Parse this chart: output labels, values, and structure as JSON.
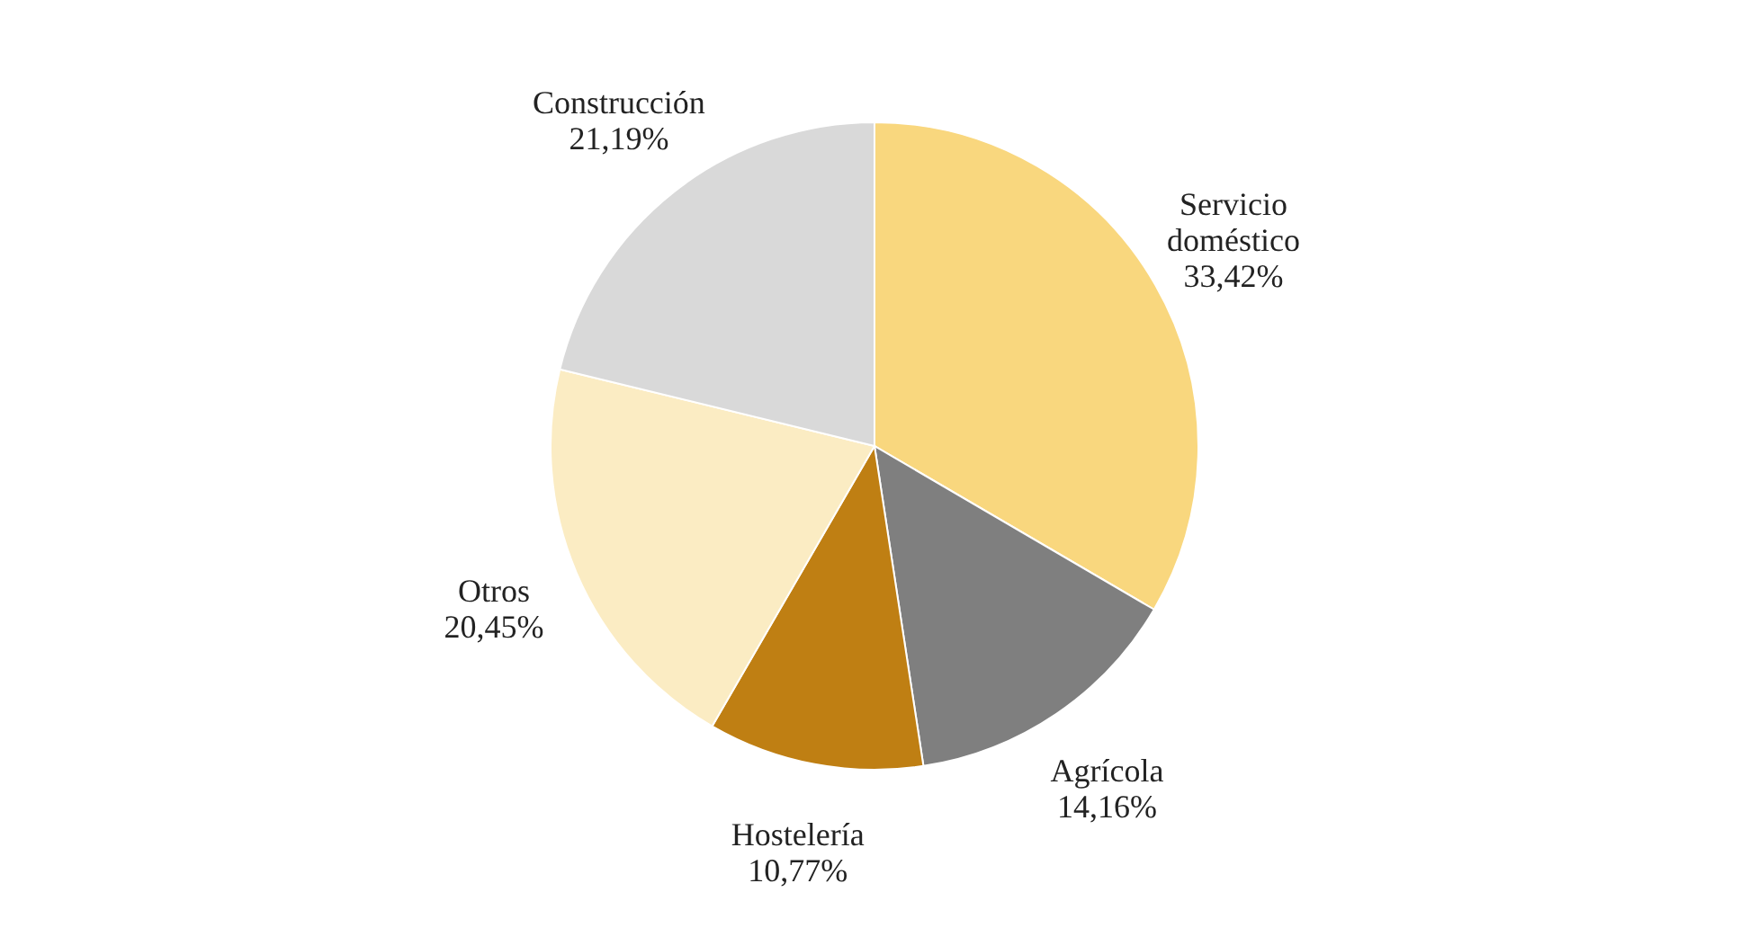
{
  "chart_data": {
    "type": "pie",
    "categories": [
      "Servicio doméstico",
      "Agrícola",
      "Hostelería",
      "Otros",
      "Construcción"
    ],
    "values": [
      33.42,
      14.16,
      10.77,
      20.45,
      21.19
    ],
    "value_labels": [
      "33,42%",
      "14,16%",
      "10,77%",
      "20,45%",
      "21,19%"
    ],
    "colors": [
      "#f9d77e",
      "#7f7f7f",
      "#bf7f13",
      "#fbecc3",
      "#d9d9d9"
    ],
    "legend": false
  }
}
